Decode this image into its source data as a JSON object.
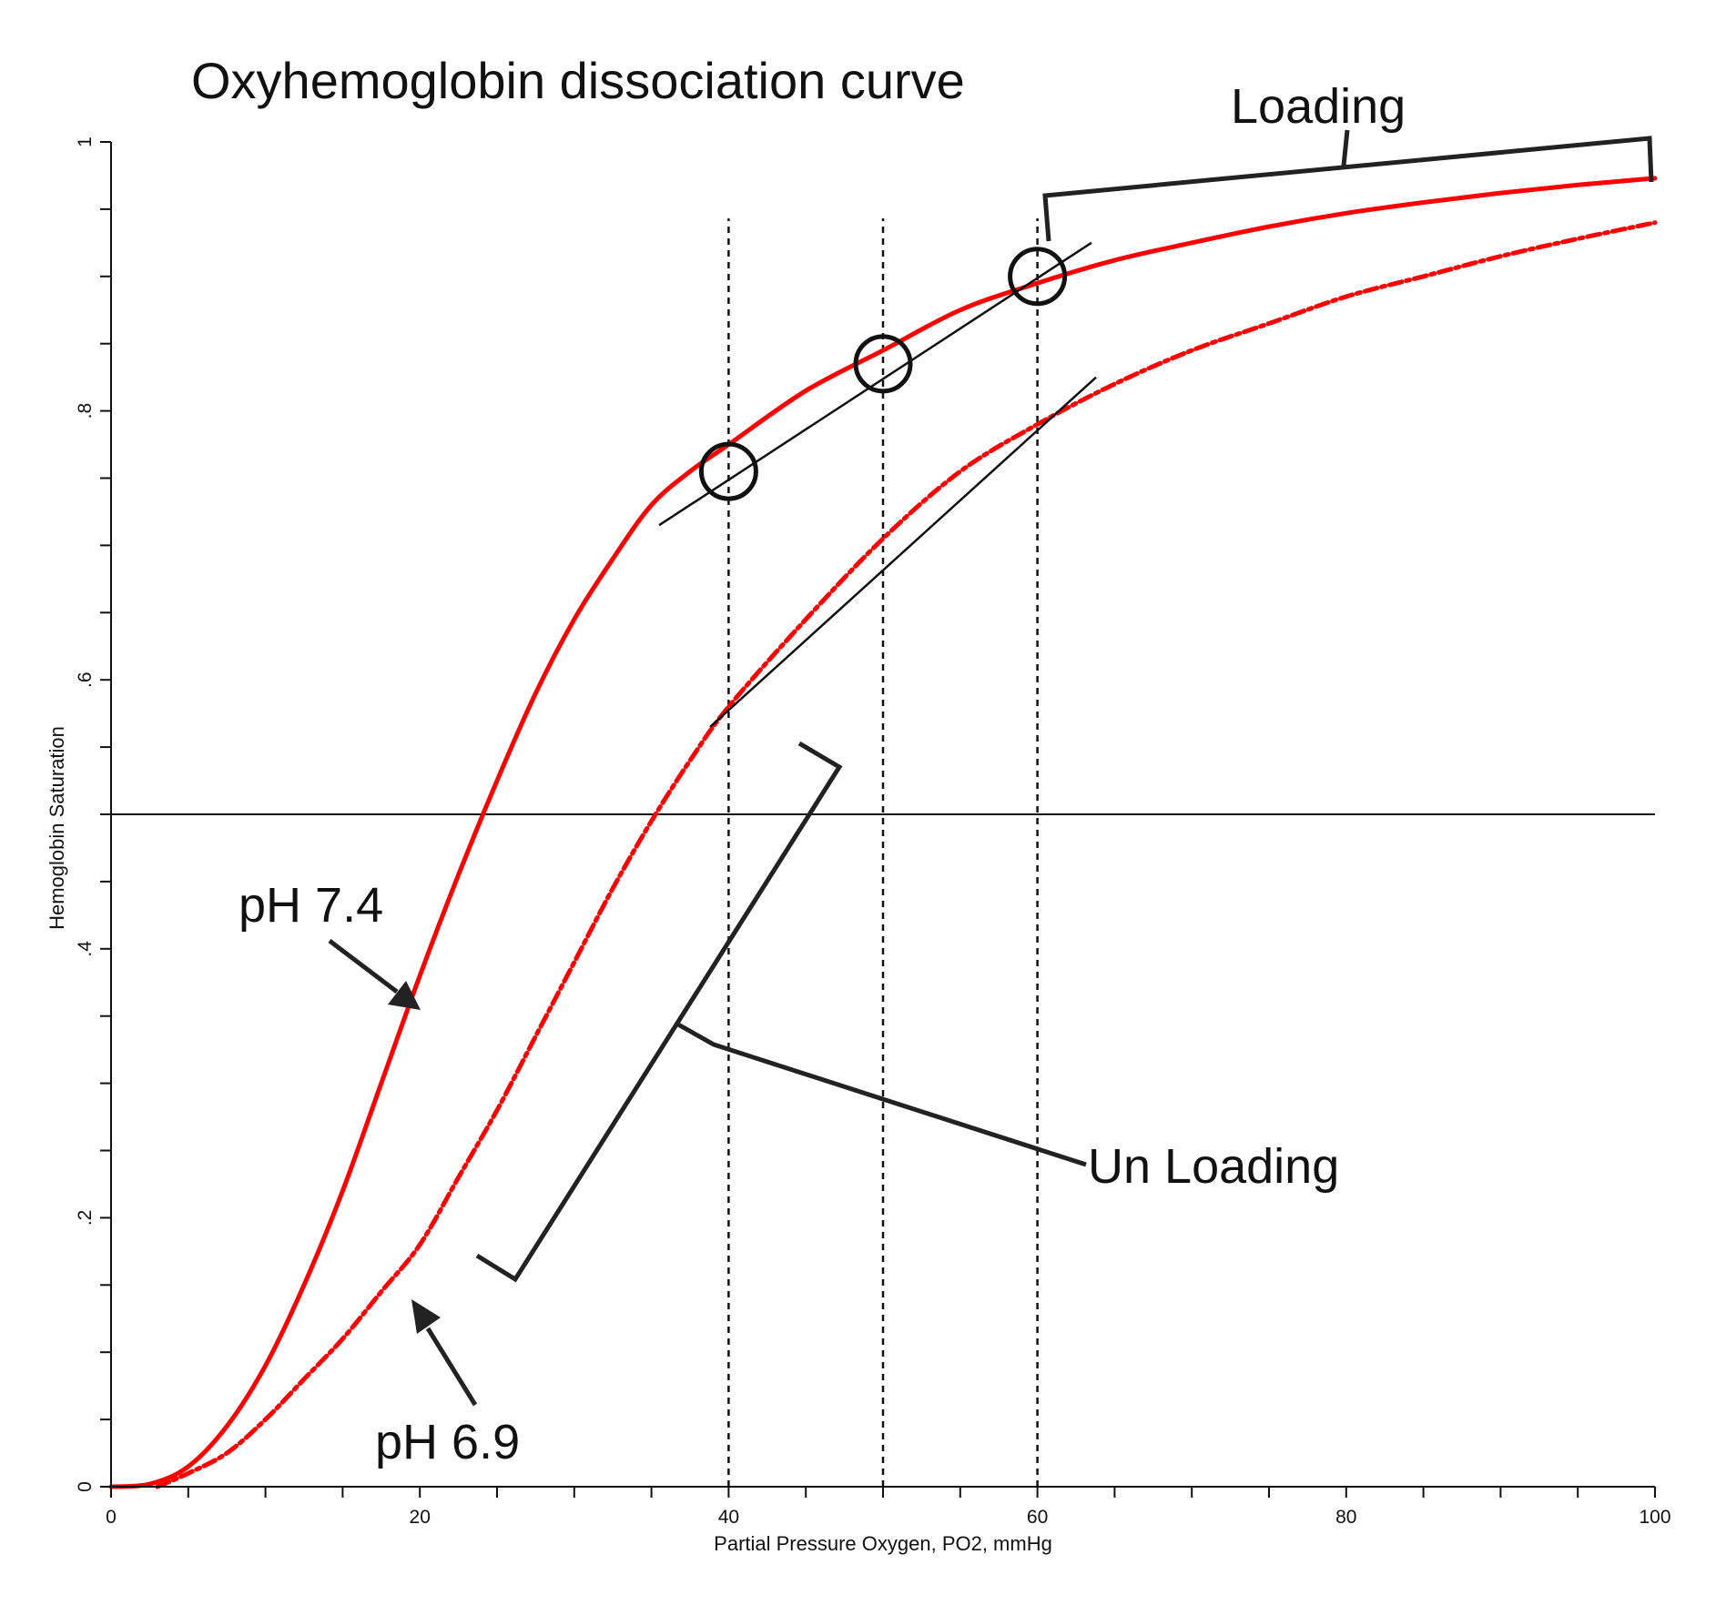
{
  "chart_data": {
    "type": "line",
    "title": "Oxyhemoglobin dissociation curve",
    "xlabel": "Partial Pressure Oxygen, PO2, mmHg",
    "ylabel": "Hemoglobin Saturation",
    "xlim": [
      0,
      100
    ],
    "ylim": [
      0,
      1
    ],
    "x_ticks": [
      {
        "value": 0,
        "label": "0"
      },
      {
        "value": 20,
        "label": "20"
      },
      {
        "value": 40,
        "label": "40"
      },
      {
        "value": 60,
        "label": "60"
      },
      {
        "value": 80,
        "label": "80"
      },
      {
        "value": 100,
        "label": "100"
      }
    ],
    "x_minor_step": 5,
    "y_ticks": [
      {
        "value": 0,
        "label": "0"
      },
      {
        "value": 0.2,
        "label": ".2"
      },
      {
        "value": 0.4,
        "label": ".4"
      },
      {
        "value": 0.6,
        "label": ".6"
      },
      {
        "value": 0.8,
        "label": ".8"
      },
      {
        "value": 1,
        "label": "1"
      }
    ],
    "y_minor_step": 0.05,
    "grid": false,
    "series": [
      {
        "name": "pH 7.4",
        "style": "solid",
        "color": "#ff0000",
        "x": [
          0,
          2.5,
          5,
          7.5,
          10,
          12.5,
          15,
          17.5,
          20,
          22.5,
          25,
          27.5,
          30,
          32.5,
          35,
          37.5,
          40,
          45,
          50,
          55,
          60,
          65,
          70,
          75,
          80,
          85,
          90,
          95,
          100
        ],
        "y": [
          0,
          0.002,
          0.015,
          0.045,
          0.09,
          0.15,
          0.22,
          0.3,
          0.38,
          0.455,
          0.525,
          0.59,
          0.645,
          0.69,
          0.73,
          0.755,
          0.775,
          0.815,
          0.845,
          0.875,
          0.895,
          0.912,
          0.925,
          0.937,
          0.947,
          0.955,
          0.962,
          0.968,
          0.973
        ]
      },
      {
        "name": "pH 6.9",
        "style": "dash-dot",
        "color": "#ff0000",
        "x": [
          3,
          5,
          7.5,
          10,
          12.5,
          15,
          17.5,
          20,
          22.5,
          25,
          27.5,
          30,
          32.5,
          35,
          37.5,
          40,
          45,
          50,
          55,
          60,
          65,
          70,
          75,
          80,
          85,
          90,
          95,
          100
        ],
        "y": [
          0,
          0.01,
          0.025,
          0.05,
          0.08,
          0.11,
          0.145,
          0.18,
          0.23,
          0.28,
          0.335,
          0.39,
          0.445,
          0.495,
          0.54,
          0.58,
          0.645,
          0.705,
          0.755,
          0.79,
          0.82,
          0.845,
          0.865,
          0.885,
          0.9,
          0.915,
          0.928,
          0.94
        ]
      }
    ],
    "reference_lines": {
      "horizontal_y": 0.5,
      "vertical_dashed_x": [
        40,
        50,
        60
      ]
    },
    "tangent_lines": [
      {
        "x": [
          35.5,
          63.5
        ],
        "y": [
          0.715,
          0.925
        ]
      },
      {
        "x": [
          38.8,
          63.8
        ],
        "y": [
          0.565,
          0.825
        ]
      }
    ],
    "circled_points": [
      {
        "x": 40,
        "y": 0.755
      },
      {
        "x": 50,
        "y": 0.835
      },
      {
        "x": 60,
        "y": 0.9
      }
    ],
    "annotations": {
      "loading": "Loading",
      "unloading": "Un Loading",
      "ph74": "pH 7.4",
      "ph69": "pH 6.9"
    }
  }
}
